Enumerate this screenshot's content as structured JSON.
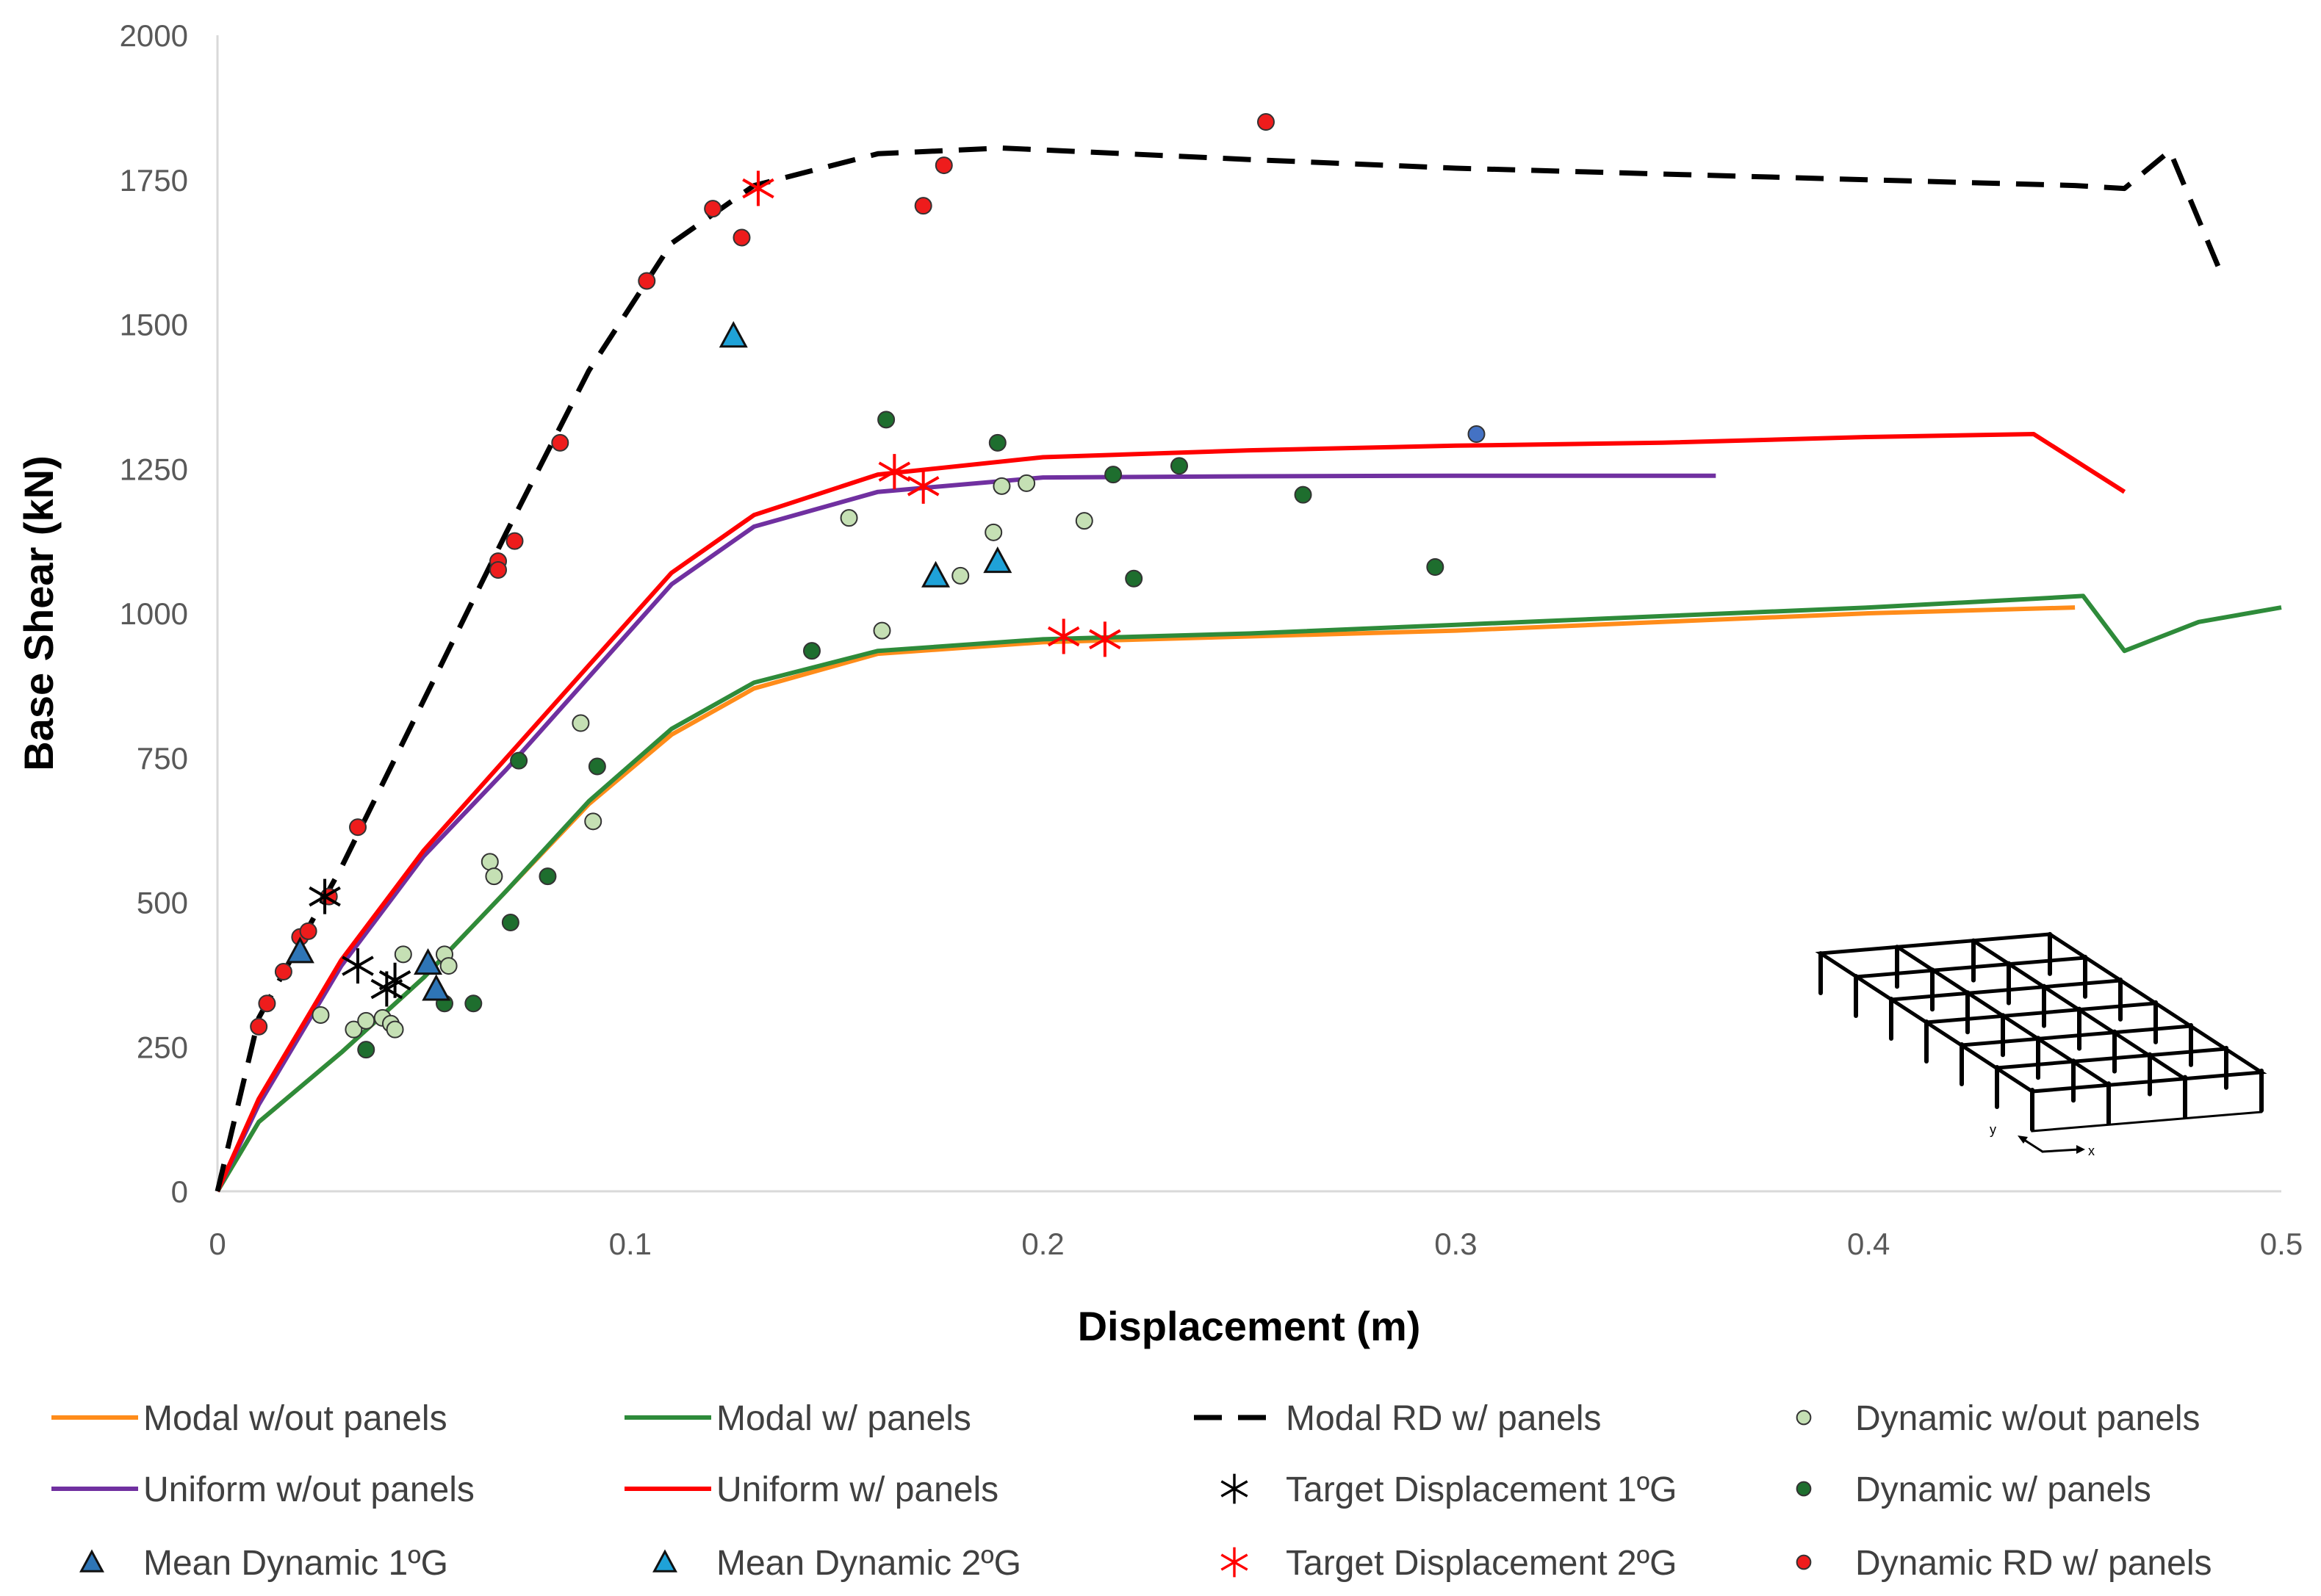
{
  "chart_data": {
    "type": "line",
    "title": "",
    "xlabel": "Displacement (m)",
    "ylabel": "Base Shear (kN)",
    "xlim": [
      0,
      0.5
    ],
    "ylim": [
      0,
      2000
    ],
    "x_ticks": [
      "0",
      "0.1",
      "0.2",
      "0.3",
      "0.4",
      "0.5"
    ],
    "y_ticks": [
      "0",
      "250",
      "500",
      "750",
      "1000",
      "1250",
      "1500",
      "1750",
      "2000"
    ],
    "grid": false,
    "legend_position": "bottom",
    "series": [
      {
        "name": "Modal w/out panels",
        "kind": "line",
        "color": "#ff8c1a",
        "x": [
          0,
          0.01,
          0.03,
          0.05,
          0.07,
          0.09,
          0.11,
          0.13,
          0.16,
          0.2,
          0.25,
          0.3,
          0.35,
          0.4,
          0.45
        ],
        "y": [
          0,
          120,
          240,
          370,
          520,
          670,
          790,
          870,
          930,
          950,
          960,
          970,
          985,
          1000,
          1010
        ]
      },
      {
        "name": "Modal w/ panels",
        "kind": "line",
        "color": "#2e8b3a",
        "x": [
          0,
          0.01,
          0.03,
          0.05,
          0.07,
          0.09,
          0.11,
          0.13,
          0.16,
          0.2,
          0.25,
          0.3,
          0.35,
          0.4,
          0.44,
          0.452,
          0.462,
          0.48,
          0.5
        ],
        "y": [
          0,
          120,
          240,
          370,
          520,
          675,
          800,
          880,
          935,
          955,
          965,
          980,
          995,
          1010,
          1025,
          1030,
          935,
          985,
          1010
        ]
      },
      {
        "name": "Modal RD w/ panels",
        "kind": "dashed",
        "color": "#000000",
        "x": [
          0,
          0.01,
          0.03,
          0.05,
          0.07,
          0.09,
          0.11,
          0.13,
          0.16,
          0.19,
          0.25,
          0.3,
          0.35,
          0.4,
          0.45,
          0.462,
          0.473,
          0.485
        ],
        "y": [
          0,
          300,
          560,
          850,
          1140,
          1420,
          1640,
          1740,
          1795,
          1805,
          1785,
          1770,
          1760,
          1750,
          1740,
          1735,
          1800,
          1595
        ]
      },
      {
        "name": "Uniform w/out panels",
        "kind": "line",
        "color": "#7030a0",
        "x": [
          0,
          0.01,
          0.03,
          0.05,
          0.07,
          0.09,
          0.11,
          0.13,
          0.16,
          0.2,
          0.25,
          0.3,
          0.363
        ],
        "y": [
          0,
          150,
          390,
          580,
          730,
          890,
          1050,
          1150,
          1210,
          1235,
          1237,
          1238,
          1238
        ]
      },
      {
        "name": "Uniform w/ panels",
        "kind": "line",
        "color": "#ff0000",
        "x": [
          0,
          0.01,
          0.03,
          0.05,
          0.07,
          0.09,
          0.11,
          0.13,
          0.16,
          0.2,
          0.25,
          0.3,
          0.35,
          0.4,
          0.44,
          0.462
        ],
        "y": [
          0,
          160,
          400,
          590,
          750,
          910,
          1070,
          1170,
          1240,
          1270,
          1282,
          1290,
          1295,
          1305,
          1310,
          1210
        ]
      },
      {
        "name": "Target Displacement 1ºG",
        "kind": "star",
        "color": "#000000",
        "x": [
          0.026,
          0.034,
          0.041,
          0.043
        ],
        "y": [
          510,
          390,
          350,
          365
        ]
      },
      {
        "name": "Mean Dynamic 1ºG",
        "kind": "triangle",
        "color": "#2e75b6",
        "x": [
          0.02,
          0.051,
          0.053
        ],
        "y": [
          415,
          395,
          350
        ]
      },
      {
        "name": "Mean Dynamic 2ºG",
        "kind": "triangle",
        "color": "#1fa2d8",
        "x": [
          0.125,
          0.174,
          0.189
        ],
        "y": [
          1480,
          1065,
          1090
        ]
      },
      {
        "name": "Target Displacement 2ºG",
        "kind": "star",
        "color": "#ff0000",
        "x": [
          0.131,
          0.164,
          0.171,
          0.205,
          0.215
        ],
        "y": [
          1735,
          1245,
          1220,
          960,
          955
        ]
      },
      {
        "name": "Dynamic w/out panels",
        "kind": "circle",
        "color": "#c5e0b4",
        "x": [
          0.025,
          0.033,
          0.036,
          0.04,
          0.042,
          0.043,
          0.045,
          0.055,
          0.056,
          0.066,
          0.067,
          0.088,
          0.091,
          0.153,
          0.161,
          0.18,
          0.188,
          0.19,
          0.196,
          0.21
        ],
        "y": [
          305,
          280,
          295,
          300,
          290,
          280,
          410,
          410,
          390,
          570,
          545,
          810,
          640,
          1165,
          970,
          1065,
          1140,
          1220,
          1225,
          1160
        ]
      },
      {
        "name": "Dynamic w/ panels",
        "kind": "circle",
        "color": "#1e6e2e",
        "x": [
          0.036,
          0.055,
          0.062,
          0.071,
          0.073,
          0.08,
          0.092,
          0.144,
          0.162,
          0.189,
          0.217,
          0.222,
          0.233,
          0.263,
          0.295
        ],
        "y": [
          245,
          325,
          325,
          465,
          745,
          545,
          735,
          935,
          1335,
          1295,
          1240,
          1060,
          1255,
          1205,
          1080
        ]
      },
      {
        "name": "Dynamic RD w/ panels",
        "kind": "circle",
        "color": "#ee1c1c",
        "x": [
          0.01,
          0.012,
          0.016,
          0.02,
          0.022,
          0.027,
          0.034,
          0.068,
          0.068,
          0.072,
          0.083,
          0.104,
          0.12,
          0.127,
          0.171,
          0.176,
          0.254
        ],
        "y": [
          285,
          325,
          380,
          440,
          450,
          510,
          630,
          1090,
          1075,
          1125,
          1295,
          1575,
          1700,
          1650,
          1705,
          1775,
          1850
        ]
      },
      {
        "name": "",
        "kind": "circle",
        "color": "#4472c4",
        "legend": false,
        "x": [
          0.305
        ],
        "y": [
          1310
        ]
      }
    ],
    "legend_columns": [
      [
        "Modal w/out panels",
        "Uniform w/out panels",
        "Mean Dynamic 1ºG"
      ],
      [
        "Modal w/ panels",
        "Uniform w/ panels",
        "Mean Dynamic 2ºG"
      ],
      [
        "Modal RD w/ panels",
        "Target Displacement 1ºG",
        "Target Displacement 2ºG"
      ],
      [
        "Dynamic w/out panels",
        "Dynamic w/ panels",
        "Dynamic RD w/ panels"
      ]
    ]
  },
  "inset": {
    "name": "building-frame-diagram",
    "axis_labels": [
      "y",
      "x"
    ]
  }
}
